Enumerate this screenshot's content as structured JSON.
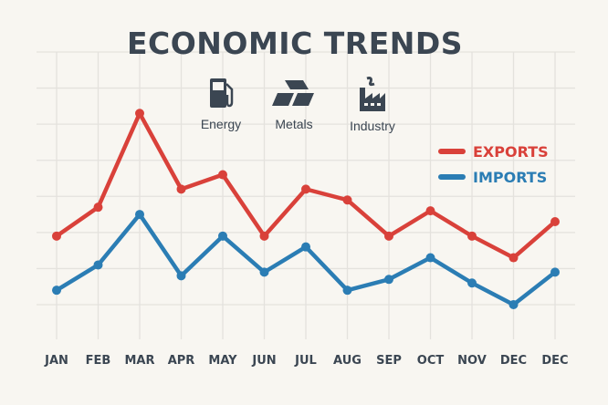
{
  "chart_data": {
    "type": "line",
    "title": "ECONOMIC TRENDS",
    "xlabel": "",
    "ylabel": "",
    "categories": [
      "JAN",
      "FEB",
      "MAR",
      "APR",
      "MAY",
      "JUN",
      "JUL",
      "AUG",
      "SEP",
      "OCT",
      "NOV",
      "DEC",
      "DEC"
    ],
    "series": [
      {
        "name": "EXPORTS",
        "color": "#d9413a",
        "values": [
          1.9,
          2.7,
          5.3,
          3.2,
          3.6,
          1.9,
          3.2,
          2.9,
          1.9,
          2.6,
          1.9,
          1.3,
          2.3
        ]
      },
      {
        "name": "IMPORTS",
        "color": "#2b7db4",
        "values": [
          0.4,
          1.1,
          2.5,
          0.8,
          1.9,
          0.9,
          1.6,
          0.4,
          0.7,
          1.3,
          0.6,
          0.0,
          0.9
        ]
      }
    ],
    "ylim": [
      -0.9,
      7
    ],
    "grid": true,
    "y_tick_labels_shown": false,
    "legend_placement": "right"
  },
  "icons": [
    {
      "icon": "fuel-pump-icon",
      "label": "Energy"
    },
    {
      "icon": "metal-bars-icon",
      "label": "Metals"
    },
    {
      "icon": "factory-icon",
      "label": "Industry"
    }
  ],
  "colors": {
    "background": "#f8f6f1",
    "text": "#3b4652",
    "grid": "#e3e1dc"
  }
}
